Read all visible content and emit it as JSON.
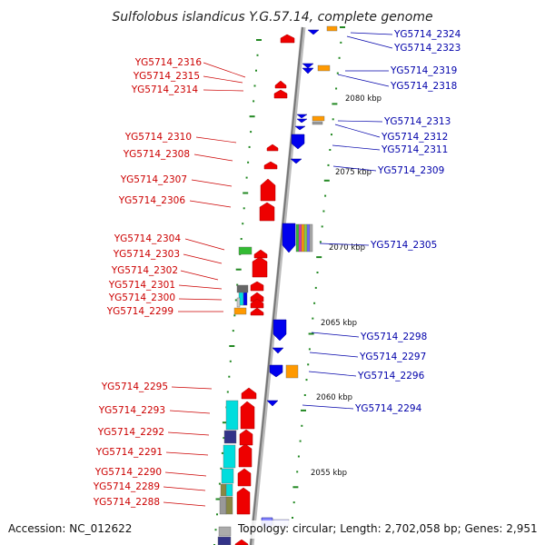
{
  "title": "Sulfolobus islandicus Y.G.57.14, complete genome",
  "footer": {
    "accession": "Accession: NC_012622",
    "topology": "Topology: circular; Length: 2,702,058 bp; Genes: 2,951"
  },
  "colors": {
    "forward": "#ee0000",
    "reverse": "#0000ee",
    "orange": "#ff9900",
    "cyan": "#00dddd",
    "green": "#33bb33",
    "navy": "#333388",
    "gray": "#999999",
    "ruler": "#228822",
    "left_label": "#cc0000",
    "right_label": "#0000aa"
  },
  "left_labels": [
    "YG5714_2316",
    "YG5714_2315",
    "YG5714_2314",
    "YG5714_2310",
    "YG5714_2308",
    "YG5714_2307",
    "YG5714_2306",
    "YG5714_2304",
    "YG5714_2303",
    "YG5714_2302",
    "YG5714_2301",
    "YG5714_2300",
    "YG5714_2299",
    "YG5714_2295",
    "YG5714_2293",
    "YG5714_2292",
    "YG5714_2291",
    "YG5714_2290",
    "YG5714_2289",
    "YG5714_2288"
  ],
  "right_labels": [
    "YG5714_2324",
    "YG5714_2323",
    "YG5714_2319",
    "YG5714_2318",
    "YG5714_2313",
    "YG5714_2312",
    "YG5714_2311",
    "YG5714_2309",
    "YG5714_2305",
    "YG5714_2298",
    "YG5714_2297",
    "YG5714_2296",
    "YG5714_2294"
  ],
  "kbp_labels": [
    "2080 kbp",
    "2075 kbp",
    "2070 kbp",
    "2065 kbp",
    "2060 kbp",
    "2055 kbp"
  ]
}
